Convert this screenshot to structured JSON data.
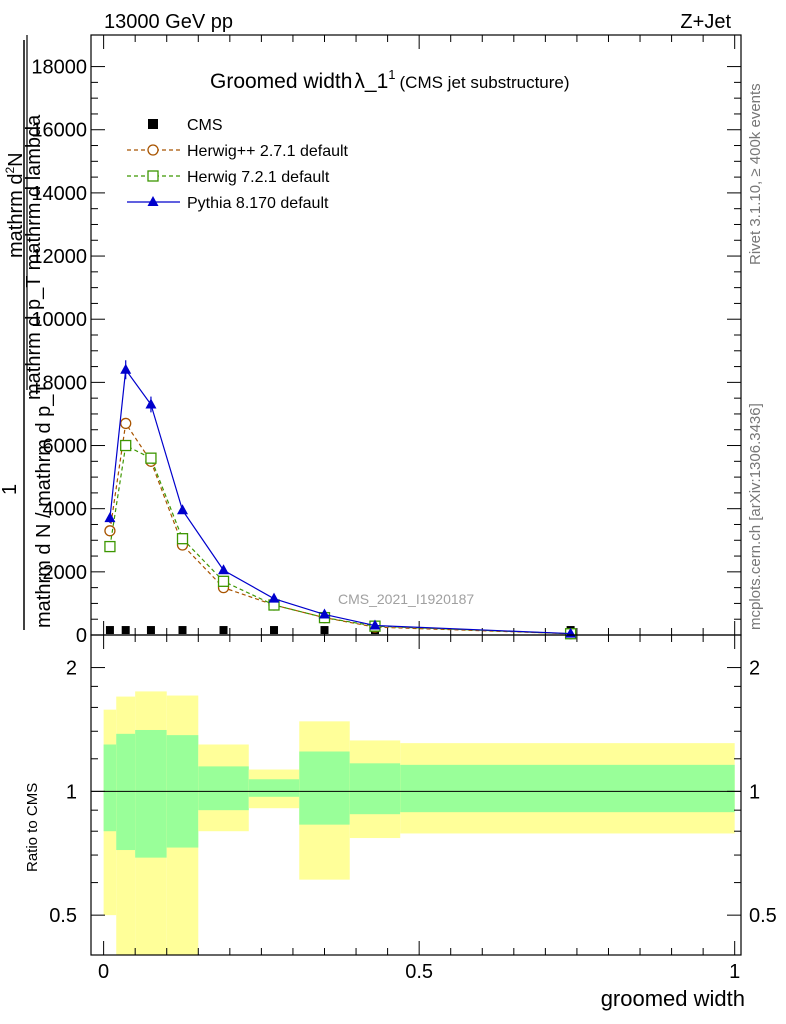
{
  "header": {
    "energy": "13000 GeV pp",
    "process": "Z+Jet"
  },
  "side_text": {
    "rivet": "Rivet 3.1.10, ≥ 400k events",
    "source": "mcplots.cern.ch [arXiv:1306.3436]"
  },
  "watermark": "CMS_2021_I1920187",
  "main_title": {
    "text": "Groomed width",
    "lambda": "λ_1",
    "sup": "1",
    "small": "(CMS jet substructure)"
  },
  "ylabel_parts": {
    "numer_top": "mathrm d",
    "numer_top_sup": "2",
    "numer_top_N": "N",
    "numer_bottom": "mathrm d p_T mathrm d lambda",
    "one": "1",
    "denom": "mathrm d N / mathrm d p_T"
  },
  "xlabel": "groomed width",
  "ratio_ylabel": "Ratio to CMS",
  "colors": {
    "cms": "#000000",
    "herwigpp": "#a85400",
    "herwig7": "#3c9600",
    "pythia": "#0000cc",
    "band_inner": "#99ff99",
    "band_outer": "#ffff99"
  },
  "chart_data": [
    {
      "type": "line",
      "title": "Groomed width λ_1^1 (CMS jet substructure)",
      "xlabel": "groomed width",
      "ylabel": "1 / mathrm d N / mathrm d p_T · mathrm d^2N / mathrm d p_T mathrm d lambda",
      "xlim": [
        -0.02,
        1.01
      ],
      "ylim": [
        0,
        19000
      ],
      "yticks": [
        0,
        2000,
        4000,
        6000,
        8000,
        10000,
        12000,
        14000,
        16000,
        18000
      ],
      "ytick_labels": [
        "0",
        "2000",
        "4000",
        "6000",
        "8000",
        "10000",
        "12000",
        "14000",
        "16000",
        "18000"
      ],
      "xticks": [
        0,
        0.5,
        1
      ],
      "xtick_labels": [
        "0",
        "0.5",
        "1"
      ],
      "legend_position": "top-left",
      "series": [
        {
          "name": "CMS",
          "marker": "filled-square",
          "x": [
            0.01,
            0.035,
            0.075,
            0.125,
            0.19,
            0.27,
            0.35,
            0.43,
            0.74
          ],
          "y": [
            30,
            30,
            30,
            30,
            30,
            30,
            30,
            30,
            30
          ]
        },
        {
          "name": "Herwig++ 2.7.1 default",
          "marker": "open-circle",
          "linestyle": "dashed",
          "x": [
            0.01,
            0.035,
            0.075,
            0.125,
            0.19,
            0.27,
            0.35,
            0.43,
            0.74
          ],
          "y": [
            3300,
            6700,
            5500,
            2850,
            1500,
            950,
            550,
            250,
            40
          ]
        },
        {
          "name": "Herwig 7.2.1 default",
          "marker": "open-square",
          "linestyle": "dashed",
          "x": [
            0.01,
            0.035,
            0.075,
            0.125,
            0.19,
            0.27,
            0.35,
            0.43,
            0.74
          ],
          "y": [
            2800,
            6000,
            5600,
            3050,
            1700,
            950,
            550,
            280,
            40
          ]
        },
        {
          "name": "Pythia 8.170 default",
          "marker": "filled-triangle",
          "linestyle": "solid",
          "x": [
            0.01,
            0.035,
            0.075,
            0.125,
            0.19,
            0.27,
            0.35,
            0.43,
            0.74
          ],
          "y": [
            3700,
            8400,
            7300,
            3950,
            2050,
            1150,
            650,
            300,
            45
          ],
          "err": [
            150,
            300,
            250,
            80,
            50,
            30,
            20,
            10,
            5
          ]
        }
      ]
    },
    {
      "type": "area",
      "title": "",
      "ylabel": "Ratio to CMS",
      "xlabel": "groomed width",
      "ylim": [
        0.4,
        2.4
      ],
      "scale": "log",
      "yticks": [
        0.5,
        1,
        2
      ],
      "ytick_labels": [
        "0.5",
        "1",
        "2"
      ],
      "xticks": [
        0,
        0.5,
        1
      ],
      "xtick_labels": [
        "0",
        "0.5",
        "1"
      ],
      "reference_line": 1,
      "bins": [
        {
          "x0": 0.0,
          "x1": 0.02,
          "inner": [
            0.8,
            1.3
          ],
          "outer": [
            0.5,
            1.58
          ]
        },
        {
          "x0": 0.02,
          "x1": 0.05,
          "inner": [
            0.72,
            1.38
          ],
          "outer": [
            0.3,
            1.7
          ]
        },
        {
          "x0": 0.05,
          "x1": 0.1,
          "inner": [
            0.69,
            1.41
          ],
          "outer": [
            0.3,
            1.75
          ]
        },
        {
          "x0": 0.1,
          "x1": 0.15,
          "inner": [
            0.73,
            1.37
          ],
          "outer": [
            0.3,
            1.71
          ]
        },
        {
          "x0": 0.15,
          "x1": 0.23,
          "inner": [
            0.9,
            1.15
          ],
          "outer": [
            0.8,
            1.3
          ]
        },
        {
          "x0": 0.23,
          "x1": 0.31,
          "inner": [
            0.97,
            1.07
          ],
          "outer": [
            0.91,
            1.13
          ]
        },
        {
          "x0": 0.31,
          "x1": 0.39,
          "inner": [
            0.83,
            1.25
          ],
          "outer": [
            0.61,
            1.48
          ]
        },
        {
          "x0": 0.39,
          "x1": 0.47,
          "inner": [
            0.88,
            1.17
          ],
          "outer": [
            0.77,
            1.33
          ]
        },
        {
          "x0": 0.47,
          "x1": 1.0,
          "inner": [
            0.89,
            1.16
          ],
          "outer": [
            0.79,
            1.31
          ]
        }
      ]
    }
  ]
}
